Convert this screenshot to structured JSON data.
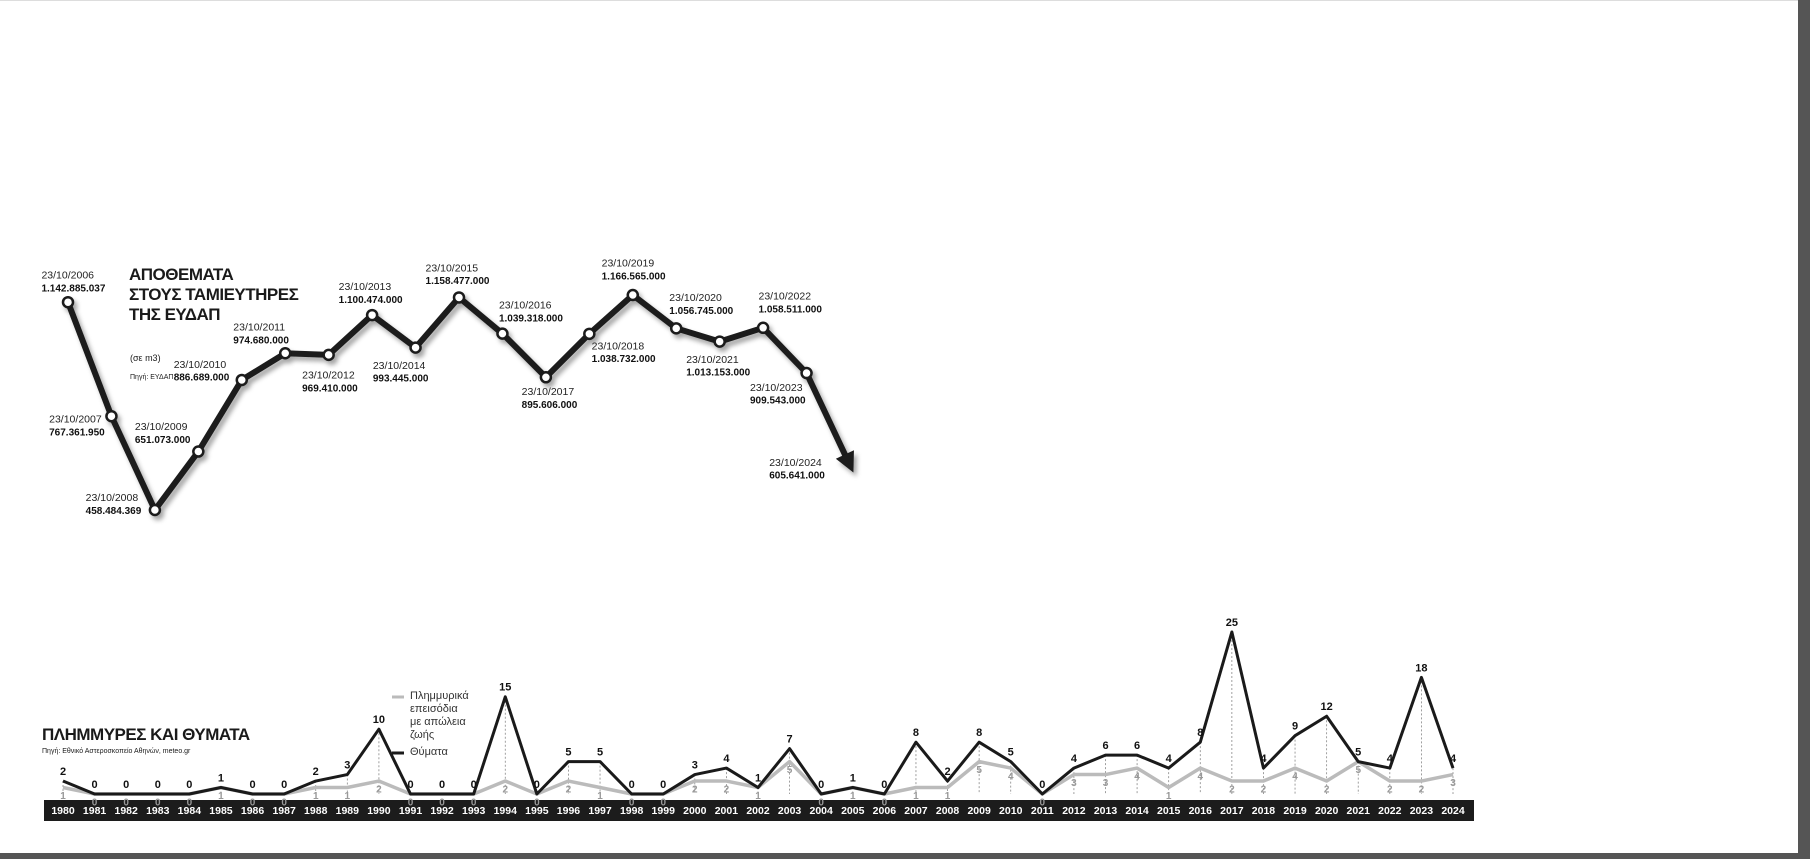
{
  "chart_data": [
    {
      "type": "line",
      "title": "ΑΠΟΘΕΜΑΤΑ\nΣΤΟΥΣ ΤΑΜΙΕΥΤΗΡΕΣ\nΤΗΣ ΕΥΔΑΠ",
      "subtitle": "(σε m3)",
      "source": "Πηγή: ΕΥΔΑΠ",
      "x": [
        "23/10/2006",
        "23/10/2007",
        "23/10/2008",
        "23/10/2009",
        "23/10/2010",
        "23/10/2011",
        "23/10/2012",
        "23/10/2013",
        "23/10/2014",
        "23/10/2015",
        "23/10/2016",
        "23/10/2017",
        "23/10/2018",
        "23/10/2019",
        "23/10/2020",
        "23/10/2021",
        "23/10/2022",
        "23/10/2023",
        "23/10/2024"
      ],
      "values": [
        1142885037,
        767361950,
        458484369,
        651073000,
        886689000,
        974680000,
        969410000,
        1100474000,
        993445000,
        1158477000,
        1039318000,
        895606000,
        1038732000,
        1166565000,
        1056745000,
        1013153000,
        1058511000,
        909543000,
        605641000
      ],
      "value_labels": [
        "1.142.885.037",
        "767.361.950",
        "458.484.369",
        "651.073.000",
        "886.689.000",
        "974.680.000",
        "969.410.000",
        "1.100.474.000",
        "993.445.000",
        "1.158.477.000",
        "1.039.318.000",
        "895.606.000",
        "1.038.732.000",
        "1.166.565.000",
        "1.056.745.000",
        "1.013.153.000",
        "1.058.511.000",
        "909.543.000",
        "605.641.000"
      ],
      "color": "#1a1a1a"
    },
    {
      "type": "line",
      "title": "ΠΛΗΜΜΥΡΕΣ ΚΑΙ ΘΥΜΑΤΑ",
      "source": "Πηγή: Εθνικό Αστεροσκοπείο Αθηνών, meteo.gr",
      "x": [
        1980,
        1981,
        1982,
        1983,
        1984,
        1985,
        1986,
        1987,
        1988,
        1989,
        1990,
        1991,
        1992,
        1993,
        1994,
        1995,
        1996,
        1997,
        1998,
        1999,
        2000,
        2001,
        2002,
        2003,
        2004,
        2005,
        2006,
        2007,
        2008,
        2009,
        2010,
        2011,
        2012,
        2013,
        2014,
        2015,
        2016,
        2017,
        2018,
        2019,
        2020,
        2021,
        2022,
        2023,
        2024
      ],
      "series": [
        {
          "name": "Πλημμυρικά\nεπεισόδια\nμε απώλεια\nζωής",
          "color": "#bbbbbb",
          "values": [
            1,
            0,
            0,
            0,
            0,
            1,
            0,
            0,
            1,
            1,
            2,
            0,
            0,
            0,
            2,
            0,
            2,
            1,
            0,
            0,
            2,
            2,
            1,
            5,
            0,
            1,
            0,
            1,
            1,
            5,
            4,
            0,
            3,
            3,
            4,
            1,
            4,
            2,
            2,
            4,
            2,
            5,
            2,
            2,
            3
          ]
        },
        {
          "name": "Θύματα",
          "color": "#1a1a1a",
          "values": [
            2,
            0,
            0,
            0,
            0,
            1,
            0,
            0,
            2,
            3,
            10,
            0,
            0,
            0,
            15,
            0,
            5,
            5,
            0,
            0,
            3,
            4,
            1,
            7,
            0,
            1,
            0,
            8,
            2,
            8,
            5,
            0,
            4,
            6,
            6,
            4,
            8,
            25,
            4,
            9,
            12,
            5,
            4,
            18,
            4
          ]
        }
      ]
    }
  ]
}
